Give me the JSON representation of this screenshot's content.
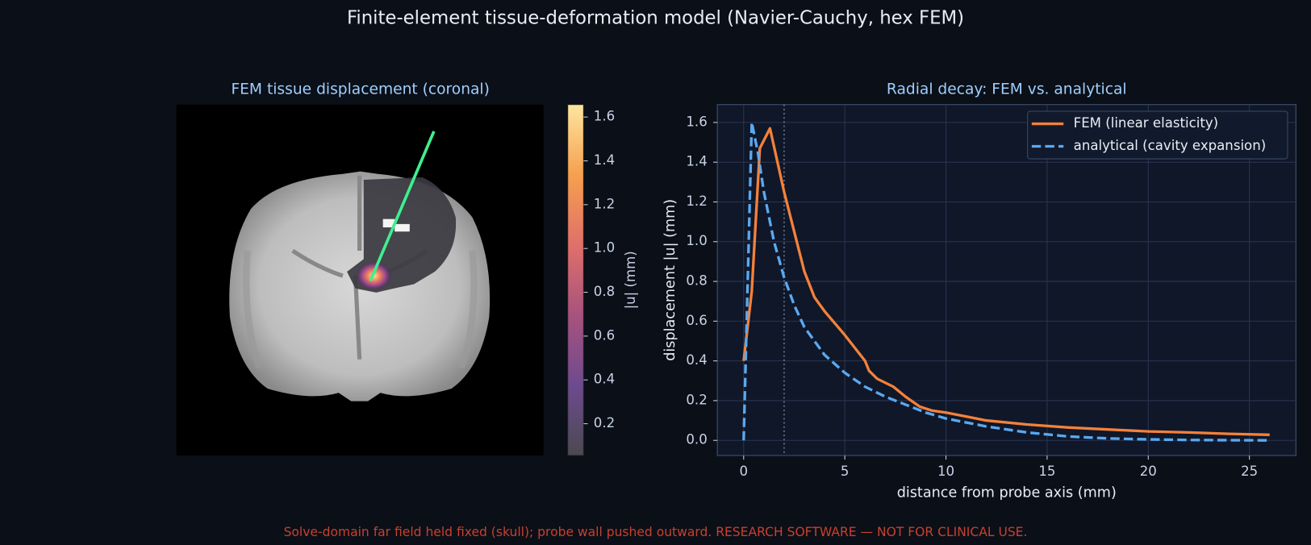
{
  "title": "Finite-element tissue-deformation model (Navier-Cauchy, hex FEM)",
  "footer": "Solve-domain far field held fixed (skull); probe wall pushed outward. RESEARCH SOFTWARE — NOT FOR CLINICAL USE.",
  "chart_data": [
    {
      "type": "image",
      "title": "FEM tissue displacement (coronal)",
      "colorbar": {
        "label": "|u| (mm)",
        "clim": [
          0.055,
          1.657
        ],
        "ticks": [
          0.2,
          0.4,
          0.6,
          0.8,
          {
            "value": 1,
            "label": "1.0"
          },
          1.2,
          1.4,
          1.6
        ],
        "colors": [
          "#4a4a50",
          "#6e4a8e",
          "#a8527e",
          "#e0706a",
          "#f6a04e",
          "#fde6a0"
        ]
      }
    },
    {
      "type": "line",
      "title": "Radial decay: FEM vs. analytical",
      "xlabel": "distance from probe axis (mm)",
      "ylabel": "displacement |u| (mm)",
      "xlim": [
        -1.3,
        27.3
      ],
      "ylim": [
        -0.076,
        1.69
      ],
      "xticks": [
        0,
        5,
        10,
        15,
        20,
        25
      ],
      "yticks": [
        {
          "value": 0,
          "label": "0.0"
        },
        0.2,
        0.4,
        0.6,
        0.8,
        {
          "value": 1,
          "label": "1.0"
        },
        1.2,
        1.4,
        1.6
      ],
      "grid": true,
      "legend": "upper right",
      "vline": 2,
      "series": [
        {
          "name": "FEM (linear elasticity)",
          "color": "#f4813a",
          "dash": false,
          "x": [
            0,
            0.4,
            0.8,
            1.3,
            2,
            2.5,
            3,
            3.5,
            4,
            5,
            6,
            6.2,
            6.6,
            7.4,
            8,
            8.7,
            9.3,
            10,
            11,
            12,
            14,
            16,
            18,
            20,
            22,
            24,
            26
          ],
          "values": [
            0.4,
            0.75,
            1.47,
            1.57,
            1.25,
            1.05,
            0.85,
            0.72,
            0.65,
            0.53,
            0.4,
            0.35,
            0.31,
            0.27,
            0.22,
            0.17,
            0.15,
            0.14,
            0.12,
            0.1,
            0.08,
            0.065,
            0.055,
            0.045,
            0.04,
            0.033,
            0.028
          ]
        },
        {
          "name": "analytical (cavity expansion)",
          "color": "#5aa9f0",
          "dash": true,
          "x": [
            0,
            0.4,
            0.7,
            1,
            1.5,
            2,
            2.5,
            3,
            4,
            5,
            6,
            7,
            8,
            9,
            10,
            12,
            14,
            16,
            18,
            20,
            22,
            26
          ],
          "values": [
            0,
            1.6,
            1.45,
            1.25,
            1,
            0.82,
            0.68,
            0.57,
            0.43,
            0.34,
            0.27,
            0.22,
            0.18,
            0.14,
            0.11,
            0.07,
            0.04,
            0.02,
            0.01,
            0.005,
            0.002,
            0
          ]
        }
      ]
    }
  ]
}
